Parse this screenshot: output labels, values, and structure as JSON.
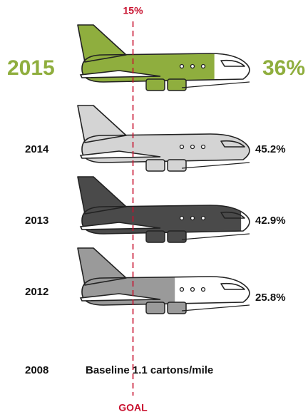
{
  "chart_data": {
    "type": "bar",
    "orientation": "horizontal",
    "categories": [
      "2015",
      "2014",
      "2013",
      "2012"
    ],
    "values": [
      36,
      45.2,
      42.9,
      25.8
    ],
    "value_labels": [
      "36%",
      "45.2%",
      "42.9%",
      "25.8%"
    ],
    "colors": [
      "#8fae3e",
      "#d4d4d4",
      "#4a4a4a",
      "#9a9a9a"
    ],
    "xlim": [
      0,
      46
    ],
    "goal": {
      "value": 15,
      "label": "15%"
    },
    "goal_label": "GOAL",
    "goal_color": "#c8102e",
    "baseline": {
      "category": "2008",
      "label": "Baseline 1.1 cartons/mile"
    }
  }
}
